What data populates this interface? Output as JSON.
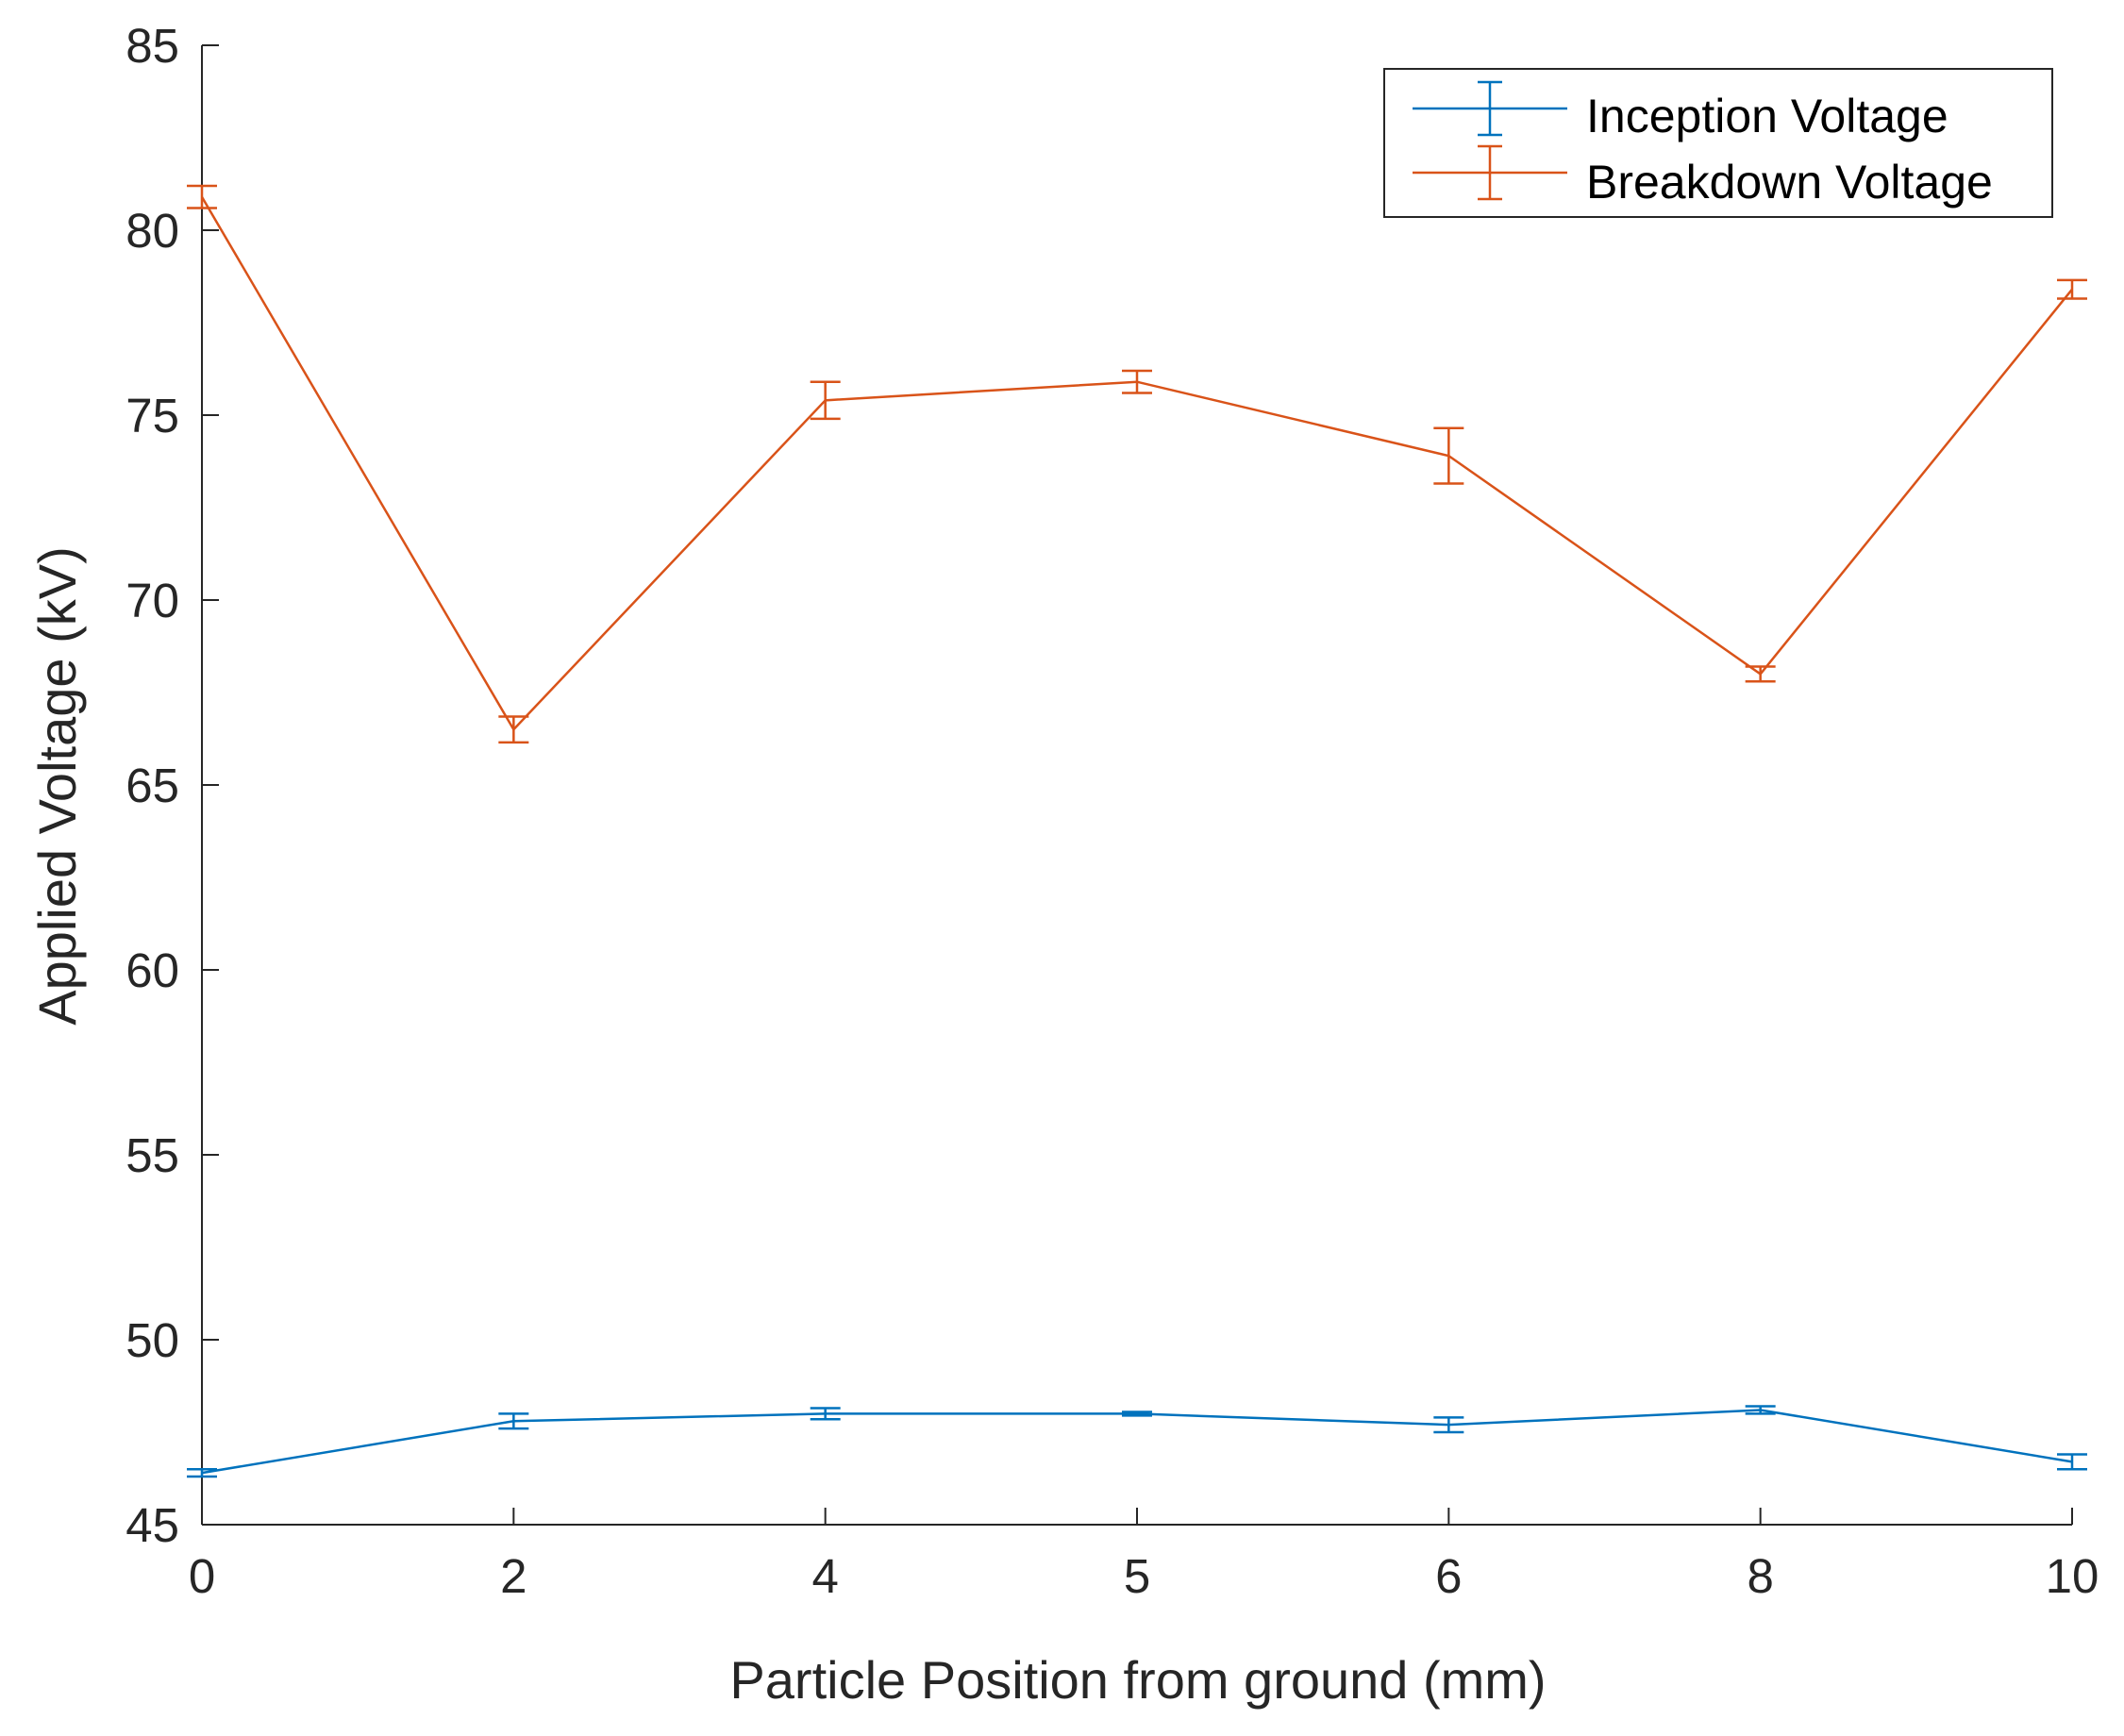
{
  "chart_data": {
    "type": "line",
    "title": "",
    "xlabel": "Particle Position from ground (mm)",
    "ylabel": "Applied Voltage (kV)",
    "categories": [
      "0",
      "2",
      "4",
      "5",
      "6",
      "8",
      "10"
    ],
    "ylim": [
      45,
      85
    ],
    "yticks": [
      45,
      50,
      55,
      60,
      65,
      70,
      75,
      80,
      85
    ],
    "grid": false,
    "legend_position": "top-right",
    "series": [
      {
        "name": "Inception Voltage",
        "color": "#0072BD",
        "values": [
          46.4,
          47.8,
          48.0,
          48.0,
          47.7,
          48.1,
          46.7
        ],
        "errors": [
          0.1,
          0.2,
          0.15,
          0.05,
          0.2,
          0.1,
          0.2
        ]
      },
      {
        "name": "Breakdown Voltage",
        "color": "#D95319",
        "values": [
          80.9,
          66.5,
          75.4,
          75.9,
          73.9,
          68.0,
          78.4
        ],
        "errors": [
          0.3,
          0.35,
          0.5,
          0.3,
          0.75,
          0.2,
          0.25
        ]
      }
    ]
  }
}
